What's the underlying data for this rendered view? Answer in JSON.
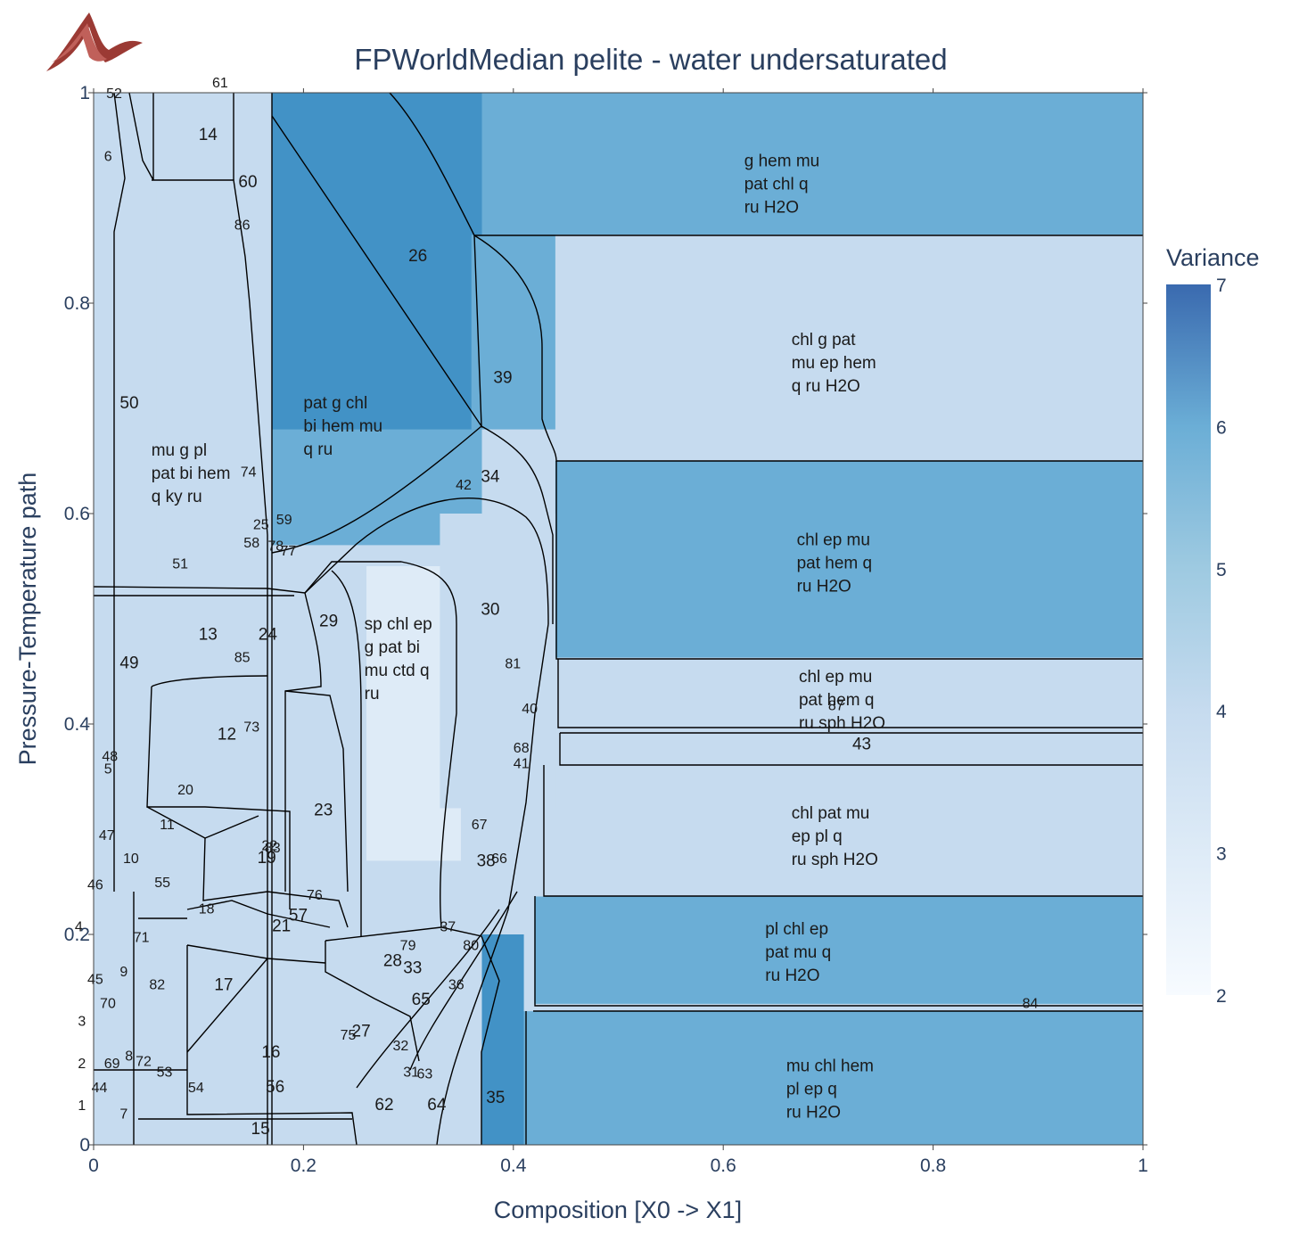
{
  "chart_data": {
    "type": "heatmap",
    "title": "FPWorldMedian pelite - water undersaturated",
    "xlabel": "Composition [X0 -> X1]",
    "ylabel": "Pressure-Temperature path",
    "xlim": [
      0,
      1
    ],
    "ylim": [
      0,
      1
    ],
    "x_ticks": [
      "0",
      "0.2",
      "0.4",
      "0.6",
      "0.8",
      "1"
    ],
    "y_ticks": [
      "0",
      "0.2",
      "0.4",
      "0.6",
      "0.8",
      "1"
    ],
    "colorbar": {
      "title": "Variance",
      "range": [
        2,
        7
      ],
      "ticks": [
        "2",
        "3",
        "4",
        "5",
        "6",
        "7"
      ],
      "colorscale": [
        "#f7fbff",
        "#deebf7",
        "#c6dbef",
        "#9ecae1",
        "#6baed6",
        "#4292c6",
        "#3a6aaf"
      ]
    },
    "fields": [
      {
        "id": "",
        "phases": [
          "g hem mu",
          "pat chl q",
          "ru H2O"
        ],
        "variance": 5,
        "x": [
          0.365,
          1
        ],
        "y": [
          0.865,
          1
        ],
        "label_at": [
          0.62,
          0.93
        ]
      },
      {
        "id": "",
        "phases": [
          "chl g pat",
          "mu ep hem",
          "q ru H2O"
        ],
        "variance": 4,
        "x": [
          0.44,
          1
        ],
        "y": [
          0.65,
          0.865
        ],
        "label_at": [
          0.665,
          0.76
        ]
      },
      {
        "id": "",
        "phases": [
          "chl ep mu",
          "pat hem q",
          "ru H2O"
        ],
        "variance": 5,
        "x": [
          0.44,
          1
        ],
        "y": [
          0.463,
          0.65
        ],
        "label_at": [
          0.67,
          0.57
        ]
      },
      {
        "id": "",
        "phases": [
          "chl ep mu",
          "pat hem q",
          "ru sph H2O"
        ],
        "variance": 4,
        "x": [
          0.44,
          1
        ],
        "y": [
          0.397,
          0.463
        ],
        "label_at": [
          0.672,
          0.44
        ]
      },
      {
        "id": "43",
        "phases": [],
        "variance": 4,
        "x": [
          0.44,
          1
        ],
        "y": [
          0.361,
          0.392
        ],
        "label_at": [
          0.723,
          0.376
        ]
      },
      {
        "id": "",
        "phases": [
          "chl pat mu",
          "ep pl q",
          "ru sph H2O"
        ],
        "variance": 4,
        "x": [
          0.43,
          1
        ],
        "y": [
          0.236,
          0.361
        ],
        "label_at": [
          0.665,
          0.31
        ]
      },
      {
        "id": "",
        "phases": [
          "pl chl ep",
          "pat mu q",
          "ru H2O"
        ],
        "variance": 5,
        "x": [
          0.42,
          1
        ],
        "y": [
          0.134,
          0.236
        ],
        "label_at": [
          0.64,
          0.2
        ]
      },
      {
        "id": "",
        "phases": [
          "mu chl hem",
          "pl ep q",
          "ru H2O"
        ],
        "variance": 5,
        "x": [
          0.41,
          1
        ],
        "y": [
          0,
          0.127
        ],
        "label_at": [
          0.66,
          0.07
        ]
      },
      {
        "id": "",
        "phases": [
          "pat g chl",
          "bi hem mu",
          "q ru"
        ],
        "variance": 5,
        "x": [
          0.17,
          0.37
        ],
        "y": [
          0.57,
          0.85
        ],
        "label_at": [
          0.2,
          0.7
        ]
      },
      {
        "id": "",
        "phases": [
          "mu g pl",
          "pat bi hem",
          "q ky ru"
        ],
        "variance": 4,
        "x": [
          0.06,
          0.17
        ],
        "y": [
          0.53,
          0.91
        ],
        "label_at": [
          0.055,
          0.655
        ]
      },
      {
        "id": "",
        "phases": [
          "sp chl ep",
          "g pat bi",
          "mu ctd q",
          "ru"
        ],
        "variance": 3,
        "x": [
          0.26,
          0.35
        ],
        "y": [
          0.27,
          0.55
        ],
        "label_at": [
          0.258,
          0.49
        ]
      },
      {
        "id": "26",
        "phases": [],
        "variance": 6,
        "x": [
          0.17,
          0.37
        ],
        "y": [
          0.68,
          1
        ],
        "label_at": [
          0.3,
          0.84
        ]
      },
      {
        "id": "39",
        "phases": [],
        "variance": 5,
        "x": [
          0.36,
          0.44
        ],
        "y": [
          0.68,
          0.865
        ],
        "label_at": [
          0.381,
          0.724
        ]
      },
      {
        "id": "30",
        "phases": [],
        "variance": 4,
        "x": [
          0.33,
          0.44
        ],
        "y": [
          0.32,
          0.6
        ],
        "label_at": [
          0.369,
          0.504
        ]
      },
      {
        "id": "35",
        "phases": [],
        "variance": 6,
        "x": [
          0.37,
          0.41
        ],
        "y": [
          0,
          0.2
        ],
        "label_at": [
          0.374,
          0.04
        ]
      }
    ],
    "region_numbers": [
      {
        "id": "1",
        "at": [
          -0.015,
          0.033
        ]
      },
      {
        "id": "2",
        "at": [
          -0.015,
          0.073
        ]
      },
      {
        "id": "3",
        "at": [
          -0.015,
          0.113
        ]
      },
      {
        "id": "4",
        "at": [
          -0.018,
          0.203
        ]
      },
      {
        "id": "5",
        "at": [
          0.01,
          0.353
        ]
      },
      {
        "id": "6",
        "at": [
          0.01,
          0.935
        ]
      },
      {
        "id": "7",
        "at": [
          0.025,
          0.025
        ]
      },
      {
        "id": "8",
        "at": [
          0.03,
          0.08
        ]
      },
      {
        "id": "9",
        "at": [
          0.025,
          0.16
        ]
      },
      {
        "id": "10",
        "at": [
          0.028,
          0.268
        ]
      },
      {
        "id": "11",
        "at": [
          0.063,
          0.3
        ]
      },
      {
        "id": "12",
        "at": [
          0.118,
          0.385
        ]
      },
      {
        "id": "13",
        "at": [
          0.1,
          0.48
        ]
      },
      {
        "id": "14",
        "at": [
          0.1,
          0.955
        ]
      },
      {
        "id": "15",
        "at": [
          0.15,
          0.01
        ]
      },
      {
        "id": "16",
        "at": [
          0.16,
          0.083
        ]
      },
      {
        "id": "17",
        "at": [
          0.115,
          0.147
        ]
      },
      {
        "id": "18",
        "at": [
          0.1,
          0.22
        ]
      },
      {
        "id": "19",
        "at": [
          0.156,
          0.268
        ]
      },
      {
        "id": "20",
        "at": [
          0.08,
          0.333
        ]
      },
      {
        "id": "21",
        "at": [
          0.17,
          0.203
        ]
      },
      {
        "id": "22",
        "at": [
          0.16,
          0.28
        ]
      },
      {
        "id": "23",
        "at": [
          0.21,
          0.313
        ]
      },
      {
        "id": "24",
        "at": [
          0.157,
          0.48
        ]
      },
      {
        "id": "25",
        "at": [
          0.152,
          0.585
        ]
      },
      {
        "id": "26",
        "at": [
          0.3,
          0.84
        ]
      },
      {
        "id": "27",
        "at": [
          0.246,
          0.103
        ]
      },
      {
        "id": "28",
        "at": [
          0.276,
          0.17
        ]
      },
      {
        "id": "29",
        "at": [
          0.215,
          0.493
        ]
      },
      {
        "id": "30",
        "at": [
          0.369,
          0.504
        ]
      },
      {
        "id": "31",
        "at": [
          0.295,
          0.065
        ]
      },
      {
        "id": "32",
        "at": [
          0.285,
          0.09
        ]
      },
      {
        "id": "33",
        "at": [
          0.295,
          0.163
        ]
      },
      {
        "id": "34",
        "at": [
          0.369,
          0.63
        ]
      },
      {
        "id": "35",
        "at": [
          0.374,
          0.04
        ]
      },
      {
        "id": "36",
        "at": [
          0.338,
          0.148
        ]
      },
      {
        "id": "37",
        "at": [
          0.33,
          0.203
        ]
      },
      {
        "id": "38",
        "at": [
          0.365,
          0.265
        ]
      },
      {
        "id": "39",
        "at": [
          0.381,
          0.724
        ]
      },
      {
        "id": "40",
        "at": [
          0.408,
          0.41
        ]
      },
      {
        "id": "41",
        "at": [
          0.4,
          0.358
        ]
      },
      {
        "id": "42",
        "at": [
          0.345,
          0.623
        ]
      },
      {
        "id": "43",
        "at": [
          0.723,
          0.376
        ]
      },
      {
        "id": "44",
        "at": [
          -0.002,
          0.05
        ]
      },
      {
        "id": "45",
        "at": [
          -0.006,
          0.153
        ]
      },
      {
        "id": "46",
        "at": [
          -0.006,
          0.243
        ]
      },
      {
        "id": "47",
        "at": [
          0.005,
          0.29
        ]
      },
      {
        "id": "48",
        "at": [
          0.008,
          0.365
        ]
      },
      {
        "id": "49",
        "at": [
          0.025,
          0.453
        ]
      },
      {
        "id": "50",
        "at": [
          0.025,
          0.7
        ]
      },
      {
        "id": "51",
        "at": [
          0.075,
          0.548
        ]
      },
      {
        "id": "52",
        "at": [
          0.012,
          0.995
        ]
      },
      {
        "id": "53",
        "at": [
          0.06,
          0.065
        ]
      },
      {
        "id": "54",
        "at": [
          0.09,
          0.05
        ]
      },
      {
        "id": "55",
        "at": [
          0.058,
          0.245
        ]
      },
      {
        "id": "56",
        "at": [
          0.164,
          0.05
        ]
      },
      {
        "id": "57",
        "at": [
          0.186,
          0.213
        ]
      },
      {
        "id": "58",
        "at": [
          0.143,
          0.568
        ]
      },
      {
        "id": "59",
        "at": [
          0.174,
          0.59
        ]
      },
      {
        "id": "60",
        "at": [
          0.138,
          0.91
        ]
      },
      {
        "id": "61",
        "at": [
          0.113,
          1.005
        ]
      },
      {
        "id": "62",
        "at": [
          0.268,
          0.033
        ]
      },
      {
        "id": "63",
        "at": [
          0.308,
          0.063
        ]
      },
      {
        "id": "64",
        "at": [
          0.318,
          0.033
        ]
      },
      {
        "id": "65",
        "at": [
          0.303,
          0.133
        ]
      },
      {
        "id": "66",
        "at": [
          0.379,
          0.268
        ]
      },
      {
        "id": "67",
        "at": [
          0.36,
          0.3
        ]
      },
      {
        "id": "68",
        "at": [
          0.4,
          0.373
        ]
      },
      {
        "id": "69",
        "at": [
          0.01,
          0.073
        ]
      },
      {
        "id": "70",
        "at": [
          0.006,
          0.13
        ]
      },
      {
        "id": "71",
        "at": [
          0.038,
          0.193
        ]
      },
      {
        "id": "72",
        "at": [
          0.04,
          0.075
        ]
      },
      {
        "id": "73",
        "at": [
          0.143,
          0.393
        ]
      },
      {
        "id": "74",
        "at": [
          0.14,
          0.635
        ]
      },
      {
        "id": "75",
        "at": [
          0.235,
          0.1
        ]
      },
      {
        "id": "76",
        "at": [
          0.203,
          0.233
        ]
      },
      {
        "id": "77",
        "at": [
          0.178,
          0.56
        ]
      },
      {
        "id": "78",
        "at": [
          0.166,
          0.565
        ]
      },
      {
        "id": "79",
        "at": [
          0.292,
          0.185
        ]
      },
      {
        "id": "80",
        "at": [
          0.352,
          0.185
        ]
      },
      {
        "id": "81",
        "at": [
          0.392,
          0.453
        ]
      },
      {
        "id": "82",
        "at": [
          0.053,
          0.148
        ]
      },
      {
        "id": "83",
        "at": [
          0.163,
          0.278
        ]
      },
      {
        "id": "84",
        "at": [
          0.885,
          0.13
        ]
      },
      {
        "id": "85",
        "at": [
          0.134,
          0.459
        ]
      },
      {
        "id": "86",
        "at": [
          0.134,
          0.87
        ]
      },
      {
        "id": "87",
        "at": [
          0.7,
          0.413
        ]
      }
    ]
  }
}
